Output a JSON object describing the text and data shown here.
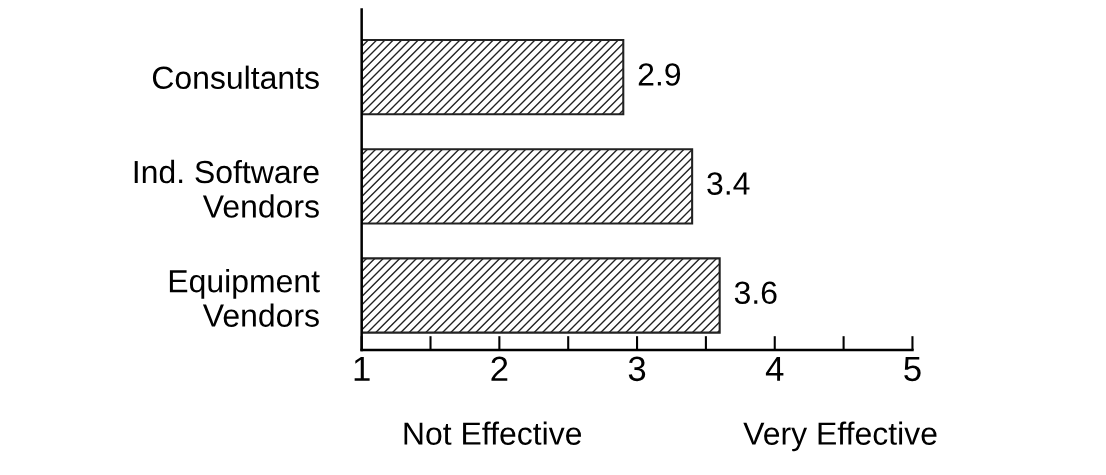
{
  "chart_data": {
    "type": "bar",
    "orientation": "horizontal",
    "categories": [
      "Consultants",
      "Ind. Software\nVendors",
      "Equipment\nVendors"
    ],
    "values": [
      2.9,
      3.4,
      3.6
    ],
    "color": "#222222",
    "data_labels": true,
    "xlim": [
      1,
      5
    ],
    "xticks": [
      1,
      {
        "value": 1.5,
        "label": null
      },
      2,
      {
        "value": 2.5,
        "label": null
      },
      3,
      {
        "value": 3.5,
        "label": null
      },
      4,
      {
        "value": 4.5,
        "label": null
      },
      5
    ],
    "grid": false,
    "annotations": [
      "Not Effective",
      "Very Effective"
    ]
  }
}
